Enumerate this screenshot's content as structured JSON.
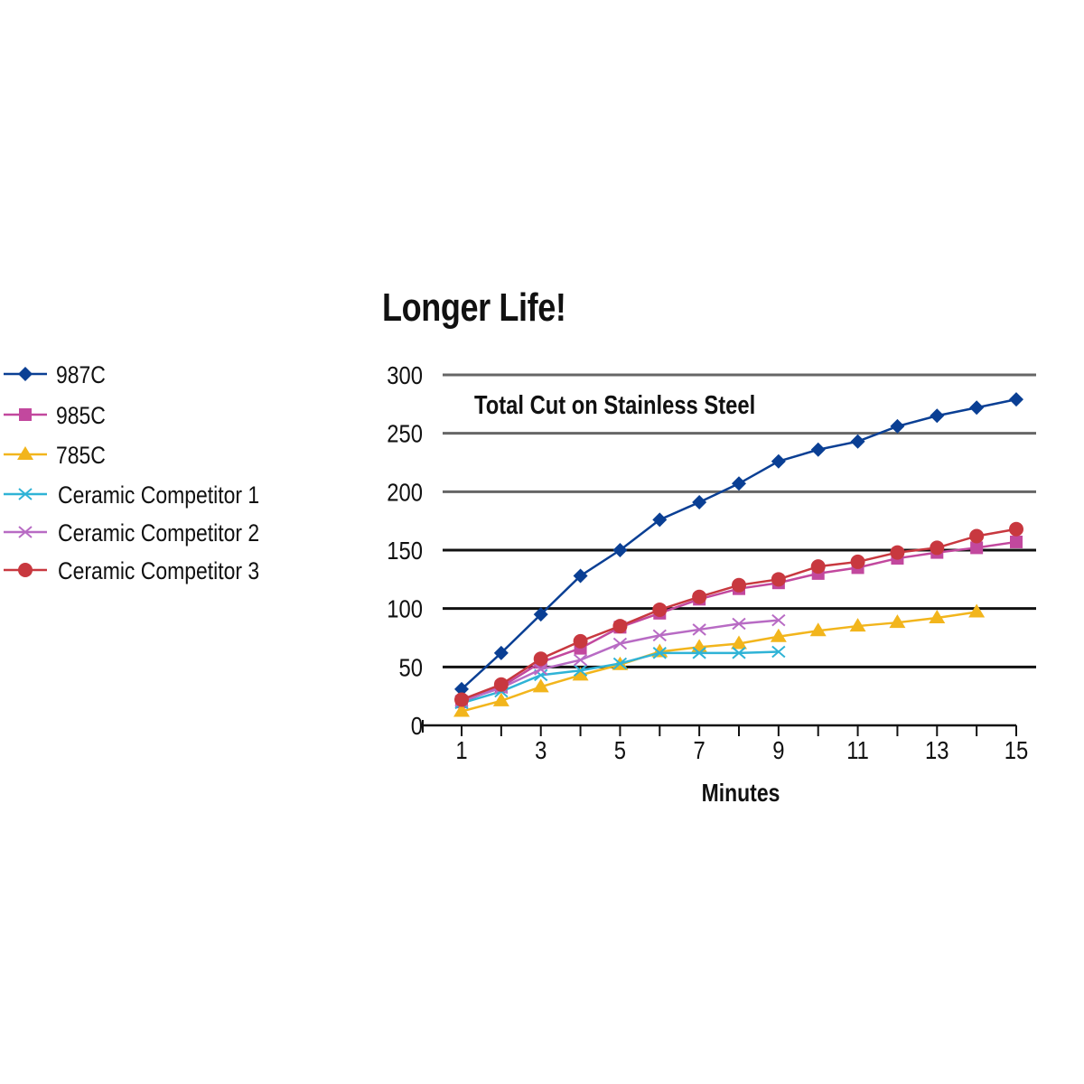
{
  "chart_data": {
    "type": "line",
    "title": "Longer Life!",
    "subtitle": "Total Cut on Stainless Steel",
    "xlabel": "Minutes",
    "ylabel": "",
    "xlim": [
      1,
      15
    ],
    "ylim": [
      0,
      300
    ],
    "x_ticks": [
      "1",
      "3",
      "5",
      "7",
      "9",
      "11",
      "13",
      "15"
    ],
    "y_ticks": [
      "0",
      "50",
      "100",
      "150",
      "200",
      "250",
      "300"
    ],
    "grid": true,
    "legend_position": "left",
    "series": [
      {
        "name": "987C",
        "color": "#0a3f94",
        "marker": "diamond",
        "x": [
          1,
          2,
          3,
          4,
          5,
          6,
          7,
          8,
          9,
          10,
          11,
          12,
          13,
          14,
          15
        ],
        "values": [
          31,
          62,
          95,
          128,
          150,
          176,
          191,
          207,
          226,
          236,
          243,
          256,
          265,
          272,
          279
        ]
      },
      {
        "name": "985C",
        "color": "#c2489e",
        "marker": "square",
        "x": [
          1,
          2,
          3,
          4,
          5,
          6,
          7,
          8,
          9,
          10,
          11,
          12,
          13,
          14,
          15
        ],
        "values": [
          20,
          33,
          54,
          66,
          84,
          96,
          108,
          117,
          122,
          130,
          135,
          143,
          148,
          152,
          157
        ]
      },
      {
        "name": "785C",
        "color": "#f2b51c",
        "marker": "triangle",
        "x": [
          1,
          2,
          3,
          4,
          5,
          6,
          7,
          8,
          9,
          10,
          11,
          12,
          13,
          14
        ],
        "values": [
          12,
          21,
          33,
          43,
          52,
          63,
          67,
          70,
          76,
          81,
          85,
          88,
          92,
          97
        ]
      },
      {
        "name": "Ceramic Competitor 1",
        "color": "#2fb3d6",
        "marker": "x",
        "x": [
          1,
          2,
          3,
          4,
          5,
          6,
          7,
          8,
          9
        ],
        "values": [
          19,
          29,
          43,
          47,
          53,
          62,
          62,
          62,
          63
        ]
      },
      {
        "name": "Ceramic Competitor 2",
        "color": "#b86bc4",
        "marker": "x",
        "x": [
          1,
          2,
          3,
          4,
          5,
          6,
          7,
          8,
          9
        ],
        "values": [
          21,
          32,
          48,
          56,
          70,
          77,
          82,
          87,
          90
        ]
      },
      {
        "name": "Ceramic Competitor 3",
        "color": "#c8383f",
        "marker": "circle",
        "x": [
          1,
          2,
          3,
          4,
          5,
          6,
          7,
          8,
          9,
          10,
          11,
          12,
          13,
          14,
          15
        ],
        "values": [
          22,
          35,
          57,
          72,
          85,
          99,
          110,
          120,
          125,
          136,
          140,
          148,
          152,
          162,
          168
        ]
      }
    ]
  }
}
